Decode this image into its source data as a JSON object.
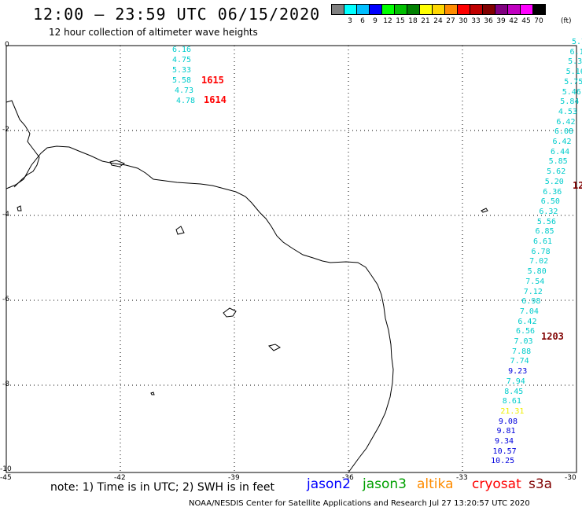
{
  "header": {
    "title": "12:00 – 23:59 UTC 06/15/2020",
    "subtitle": "12 hour collection of altimeter wave heights"
  },
  "color_scale": {
    "colors": [
      "#808080",
      "#00ffff",
      "#00bfff",
      "#0000ff",
      "#00ff00",
      "#00c000",
      "#008000",
      "#ffff00",
      "#ffd700",
      "#ff8c00",
      "#ff0000",
      "#c00000",
      "#800000",
      "#800080",
      "#c000c0",
      "#ff00ff",
      "#000000"
    ],
    "labels": [
      "3",
      "6",
      "9",
      "12",
      "15",
      "18",
      "21",
      "24",
      "27",
      "30",
      "33",
      "36",
      "39",
      "42",
      "45",
      "70"
    ],
    "unit": "(ft)"
  },
  "axes": {
    "x_ticks": [
      "-45",
      "-42",
      "-39",
      "-36",
      "-33",
      "-30"
    ],
    "y_ticks": [
      "0",
      "-2",
      "-4",
      "-6",
      "-8",
      "-10"
    ]
  },
  "left_track": {
    "values": [
      "6.16",
      "4.75",
      "5.33",
      "5.58",
      "4.73",
      "4.78"
    ],
    "pass_labels": [
      {
        "text": "1615",
        "color": "#ff0000"
      },
      {
        "text": "1614",
        "color": "#ff0000"
      }
    ]
  },
  "right_track": {
    "values": [
      {
        "v": "5.7",
        "c": "#00cccc"
      },
      {
        "v": "6.1",
        "c": "#00cccc"
      },
      {
        "v": "5.3",
        "c": "#00cccc"
      },
      {
        "v": "5.16",
        "c": "#00cccc"
      },
      {
        "v": "5.75",
        "c": "#00cccc"
      },
      {
        "v": "5.46",
        "c": "#00cccc"
      },
      {
        "v": "5.84",
        "c": "#00cccc"
      },
      {
        "v": "4.53",
        "c": "#00cccc"
      },
      {
        "v": "6.42",
        "c": "#00cccc"
      },
      {
        "v": "6.08",
        "c": "#00cccc"
      },
      {
        "v": "6.42",
        "c": "#00cccc"
      },
      {
        "v": "6.44",
        "c": "#00cccc"
      },
      {
        "v": "5.85",
        "c": "#00cccc"
      },
      {
        "v": "5.62",
        "c": "#00cccc"
      },
      {
        "v": "5.20",
        "c": "#00cccc"
      },
      {
        "v": "6.36",
        "c": "#00cccc"
      },
      {
        "v": "6.50",
        "c": "#00cccc"
      },
      {
        "v": "6.32",
        "c": "#00cccc"
      },
      {
        "v": "5.56",
        "c": "#00cccc"
      },
      {
        "v": "6.85",
        "c": "#00cccc"
      },
      {
        "v": "6.61",
        "c": "#00cccc"
      },
      {
        "v": "6.78",
        "c": "#00cccc"
      },
      {
        "v": "7.02",
        "c": "#00cccc"
      },
      {
        "v": "5.80",
        "c": "#00cccc"
      },
      {
        "v": "7.54",
        "c": "#00cccc"
      },
      {
        "v": "7.12",
        "c": "#00cccc"
      },
      {
        "v": "6.98",
        "c": "#00cccc"
      },
      {
        "v": "7.04",
        "c": "#00cccc"
      },
      {
        "v": "6.42",
        "c": "#00cccc"
      },
      {
        "v": "6.56",
        "c": "#00cccc"
      },
      {
        "v": "7.03",
        "c": "#00cccc"
      },
      {
        "v": "7.88",
        "c": "#00cccc"
      },
      {
        "v": "7.74",
        "c": "#00cccc"
      },
      {
        "v": "9.23",
        "c": "#0000dd"
      },
      {
        "v": "7.94",
        "c": "#00cccc"
      },
      {
        "v": "8.45",
        "c": "#00cccc"
      },
      {
        "v": "8.61",
        "c": "#00cccc"
      },
      {
        "v": "21.31",
        "c": "#eeee00"
      },
      {
        "v": "9.08",
        "c": "#0000dd"
      },
      {
        "v": "9.81",
        "c": "#0000dd"
      },
      {
        "v": "9.34",
        "c": "#0000dd"
      },
      {
        "v": "10.57",
        "c": "#0000dd"
      },
      {
        "v": "10.25",
        "c": "#0000dd"
      }
    ],
    "pass_labels": [
      {
        "text": "12",
        "color": "#800000"
      },
      {
        "text": "1203",
        "color": "#800000"
      }
    ]
  },
  "note": "note:  1) Time is in UTC; 2) SWH is in feet",
  "legend": [
    {
      "name": "jason2",
      "color": "#0000ff"
    },
    {
      "name": "jason3",
      "color": "#00a000"
    },
    {
      "name": "altika",
      "color": "#ff8c00"
    },
    {
      "name": "cryosat",
      "color": "#ff0000"
    },
    {
      "name": "s3a",
      "color": "#800000"
    }
  ],
  "footer": "NOAA/NESDIS Center for Satellite Applications and Research   Jul 27 13:20:57 UTC 2020"
}
